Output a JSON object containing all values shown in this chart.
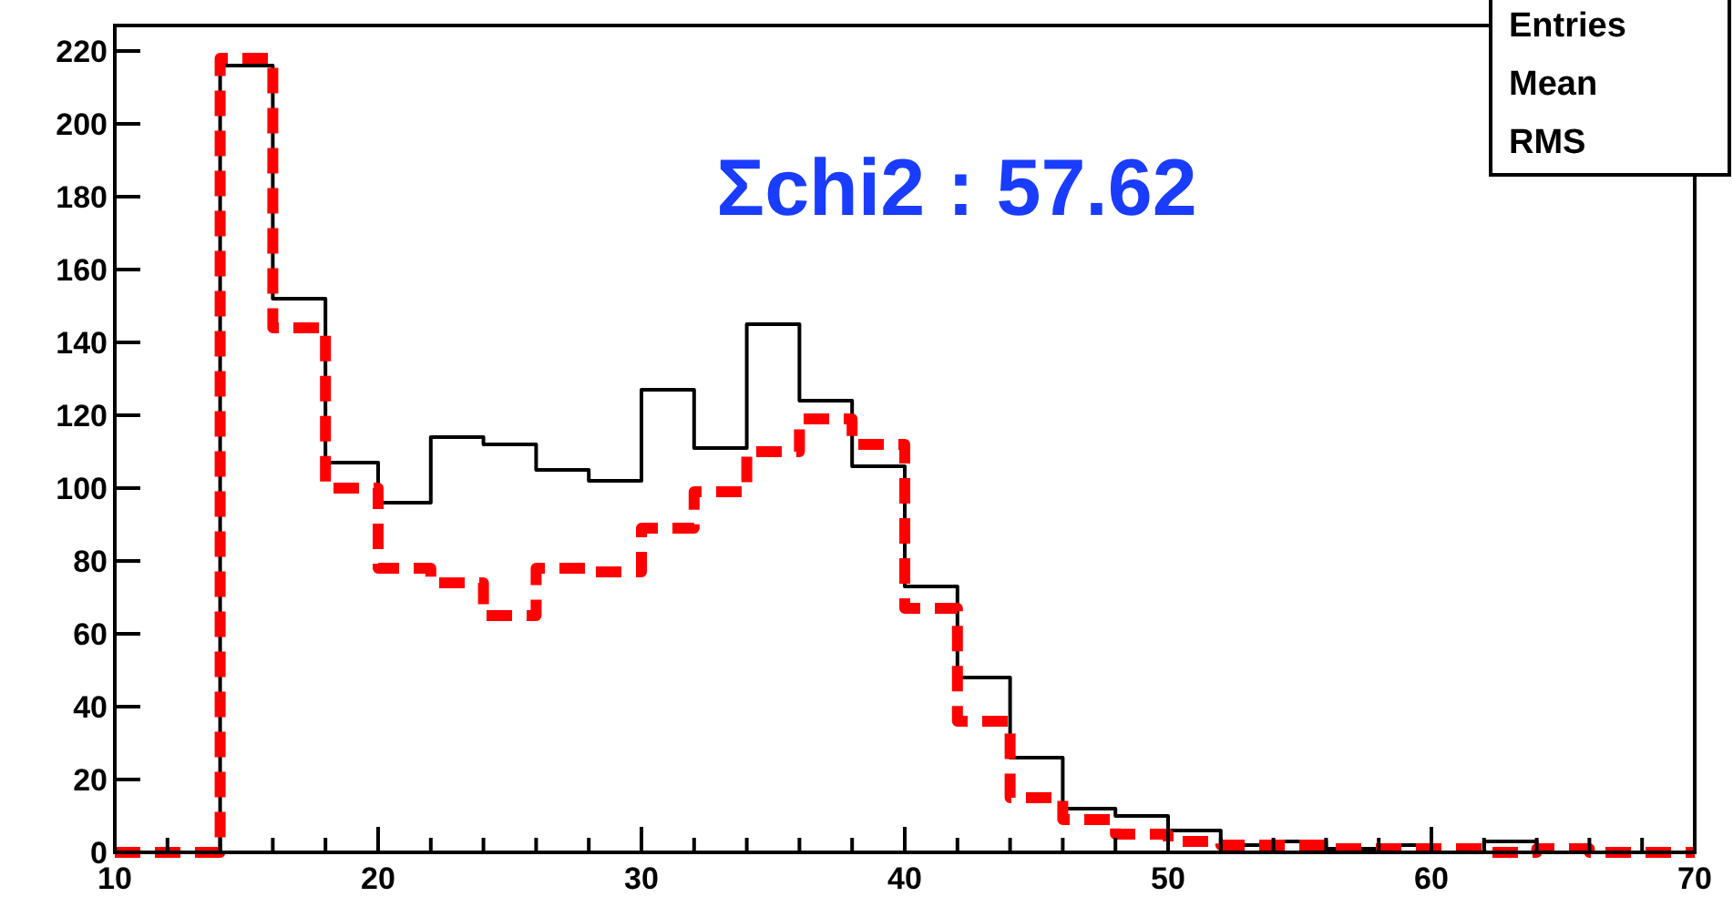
{
  "chart_data": {
    "type": "histogram",
    "bins": [
      10,
      12,
      14,
      16,
      18,
      20,
      22,
      24,
      26,
      28,
      30,
      32,
      34,
      36,
      38,
      40,
      42,
      44,
      46,
      48,
      50,
      52,
      54,
      56,
      58,
      60,
      62,
      64,
      66,
      68,
      70
    ],
    "series": [
      {
        "color": "#000000",
        "line_style": "solid",
        "values": [
          0,
          0,
          216,
          152,
          107,
          96,
          114,
          112,
          105,
          102,
          127,
          111,
          145,
          124,
          106,
          73,
          48,
          26,
          12,
          10,
          6,
          2,
          3,
          1,
          2,
          0,
          3,
          0,
          0,
          0
        ]
      },
      {
        "color": "#ff0000",
        "line_style": "dashed",
        "values": [
          0,
          0,
          218,
          144,
          100,
          78,
          74,
          65,
          78,
          77,
          89,
          99,
          110,
          119,
          112,
          67,
          36,
          15,
          9,
          5,
          3,
          2,
          2,
          1,
          1,
          1,
          0,
          1,
          0,
          0
        ]
      }
    ],
    "xlim": [
      10,
      70
    ],
    "ylim": [
      0,
      227
    ],
    "xticks": [
      10,
      {
        "value": 12,
        "label": null
      },
      {
        "value": 14,
        "label": null
      },
      {
        "value": 16,
        "label": null
      },
      {
        "value": 18,
        "label": null
      },
      20,
      {
        "value": 22,
        "label": null
      },
      {
        "value": 24,
        "label": null
      },
      {
        "value": 26,
        "label": null
      },
      {
        "value": 28,
        "label": null
      },
      30,
      {
        "value": 32,
        "label": null
      },
      {
        "value": 34,
        "label": null
      },
      {
        "value": 36,
        "label": null
      },
      {
        "value": 38,
        "label": null
      },
      40,
      {
        "value": 42,
        "label": null
      },
      {
        "value": 44,
        "label": null
      },
      {
        "value": 46,
        "label": null
      },
      {
        "value": 48,
        "label": null
      },
      50,
      {
        "value": 52,
        "label": null
      },
      {
        "value": 54,
        "label": null
      },
      {
        "value": 56,
        "label": null
      },
      {
        "value": 58,
        "label": null
      },
      60,
      {
        "value": 62,
        "label": null
      },
      {
        "value": 64,
        "label": null
      },
      {
        "value": 66,
        "label": null
      },
      {
        "value": 68,
        "label": null
      },
      70
    ],
    "yticks": [
      0,
      20,
      40,
      60,
      80,
      100,
      120,
      140,
      160,
      180,
      200,
      220
    ],
    "grid": false,
    "annotations": [
      "Σchi2 :  57.62",
      "Entries",
      "Mean",
      "RMS"
    ]
  }
}
